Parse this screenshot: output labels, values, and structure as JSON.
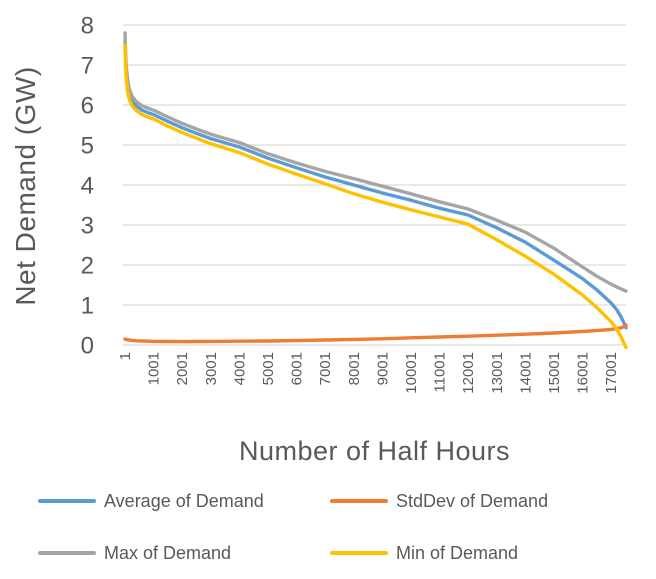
{
  "figure_title": "",
  "axes": {
    "x_title": "Number of Half Hours",
    "y_title": "Net Demand (GW)"
  },
  "legend": {
    "items": [
      {
        "label": "Average of Demand",
        "color": "#5B9BD5"
      },
      {
        "label": "StdDev of Demand",
        "color": "#ED7D31"
      },
      {
        "label": "Max of Demand",
        "color": "#A5A5A5"
      },
      {
        "label": "Min of Demand",
        "color": "#FFC000"
      }
    ]
  },
  "chart_data": {
    "type": "line",
    "title": "",
    "xlabel": "Number of Half Hours",
    "ylabel": "Net Demand (GW)",
    "xlim": [
      1,
      17520
    ],
    "ylim": [
      0,
      8
    ],
    "grid": "horizontal-only",
    "gridline_color": "#D9D9D9",
    "text_color": "#595959",
    "legend_position": "bottom",
    "y_ticks": [
      0,
      1,
      2,
      3,
      4,
      5,
      6,
      7,
      8
    ],
    "x_ticks": [
      1,
      1001,
      2001,
      3001,
      4001,
      5001,
      6001,
      7001,
      8001,
      9001,
      10001,
      11001,
      12001,
      13001,
      14001,
      15001,
      16001,
      17001
    ],
    "x_tick_labels": [
      "1",
      "1001",
      "2001",
      "3001",
      "4001",
      "5001",
      "6001",
      "7001",
      "8001",
      "9001",
      "10001",
      "11001",
      "12001",
      "13001",
      "14001",
      "15001",
      "16001",
      "17001"
    ],
    "x": [
      1,
      30,
      60,
      100,
      150,
      250,
      400,
      600,
      875,
      1000,
      1500,
      2000,
      2500,
      3000,
      4000,
      5000,
      6000,
      7000,
      8000,
      9000,
      10000,
      11000,
      12000,
      13000,
      14000,
      15000,
      16000,
      16500,
      17000,
      17200,
      17350,
      17450,
      17520
    ],
    "series": [
      {
        "name": "Average of Demand",
        "color": "#5B9BD5",
        "values": [
          7.6,
          7.0,
          6.7,
          6.45,
          6.27,
          6.1,
          5.97,
          5.87,
          5.79,
          5.76,
          5.59,
          5.43,
          5.29,
          5.16,
          4.95,
          4.67,
          4.43,
          4.2,
          4.0,
          3.8,
          3.62,
          3.42,
          3.25,
          2.93,
          2.57,
          2.12,
          1.66,
          1.38,
          1.05,
          0.88,
          0.7,
          0.55,
          0.43
        ]
      },
      {
        "name": "StdDev of Demand",
        "color": "#ED7D31",
        "values": [
          0.15,
          0.14,
          0.135,
          0.13,
          0.125,
          0.115,
          0.105,
          0.1,
          0.095,
          0.09,
          0.088,
          0.085,
          0.087,
          0.09,
          0.095,
          0.1,
          0.11,
          0.125,
          0.14,
          0.155,
          0.18,
          0.2,
          0.22,
          0.245,
          0.27,
          0.3,
          0.34,
          0.36,
          0.39,
          0.41,
          0.43,
          0.46,
          0.5
        ]
      },
      {
        "name": "Max of Demand",
        "color": "#A5A5A5",
        "values": [
          7.8,
          7.15,
          6.85,
          6.6,
          6.4,
          6.22,
          6.08,
          5.98,
          5.9,
          5.87,
          5.7,
          5.54,
          5.4,
          5.27,
          5.06,
          4.78,
          4.55,
          4.34,
          4.16,
          3.97,
          3.78,
          3.58,
          3.4,
          3.12,
          2.82,
          2.42,
          1.95,
          1.72,
          1.52,
          1.45,
          1.4,
          1.37,
          1.35
        ]
      },
      {
        "name": "Min of Demand",
        "color": "#FFC000",
        "values": [
          7.5,
          6.85,
          6.55,
          6.3,
          6.15,
          5.98,
          5.86,
          5.76,
          5.68,
          5.65,
          5.47,
          5.31,
          5.17,
          5.03,
          4.81,
          4.52,
          4.27,
          4.03,
          3.78,
          3.57,
          3.38,
          3.2,
          3.02,
          2.63,
          2.22,
          1.77,
          1.25,
          0.94,
          0.58,
          0.4,
          0.2,
          0.05,
          -0.06
        ]
      }
    ]
  }
}
